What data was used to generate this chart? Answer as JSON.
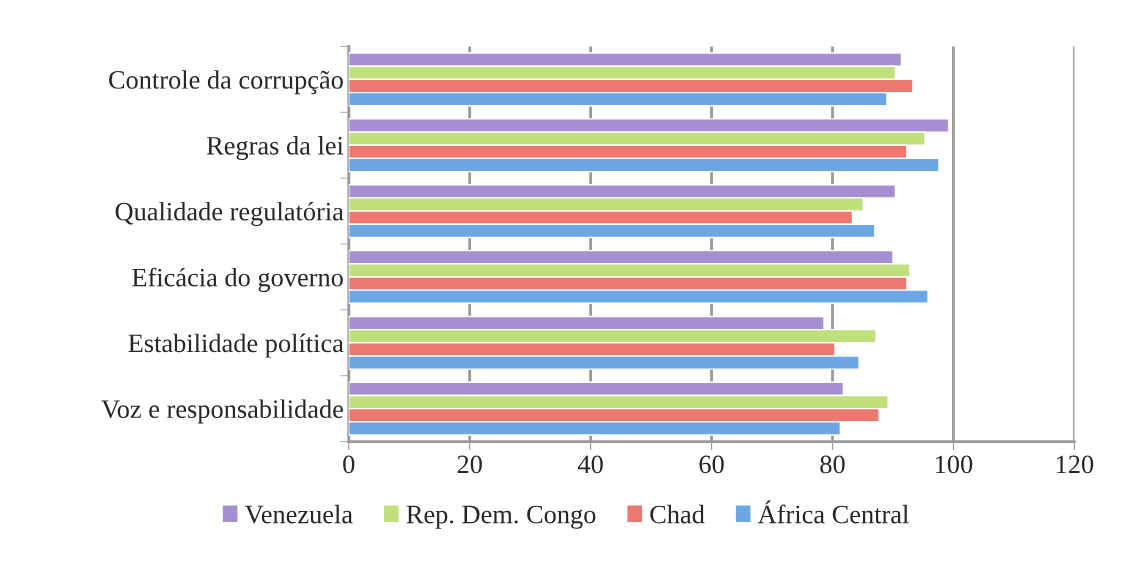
{
  "chart_data": {
    "type": "bar",
    "orientation": "horizontal",
    "categories": [
      "Controle da corrupção",
      "Regras da lei",
      "Qualidade regulatória",
      "Eficácia do governo",
      "Estabilidade política",
      "Voz e responsabilidade"
    ],
    "series": [
      {
        "name": "Venezuela",
        "color": "#a58fd2",
        "values": [
          91.4,
          99.2,
          90.4,
          90.0,
          78.6,
          81.8
        ]
      },
      {
        "name": "Rep. Dem. Congo",
        "color": "#c0e07e",
        "values": [
          90.4,
          95.3,
          85.1,
          92.8,
          87.2,
          89.2
        ]
      },
      {
        "name": "Chad",
        "color": "#ec7870",
        "values": [
          93.3,
          92.3,
          83.3,
          92.3,
          80.4,
          87.7
        ]
      },
      {
        "name": "África Central",
        "color": "#6ca6e4",
        "values": [
          89.0,
          97.6,
          87.0,
          95.8,
          84.4,
          81.3
        ]
      }
    ],
    "xlim": [
      0,
      120
    ],
    "xticks": [
      0,
      20,
      40,
      60,
      80,
      100,
      120
    ],
    "grid": "x",
    "legend": "bottom"
  }
}
